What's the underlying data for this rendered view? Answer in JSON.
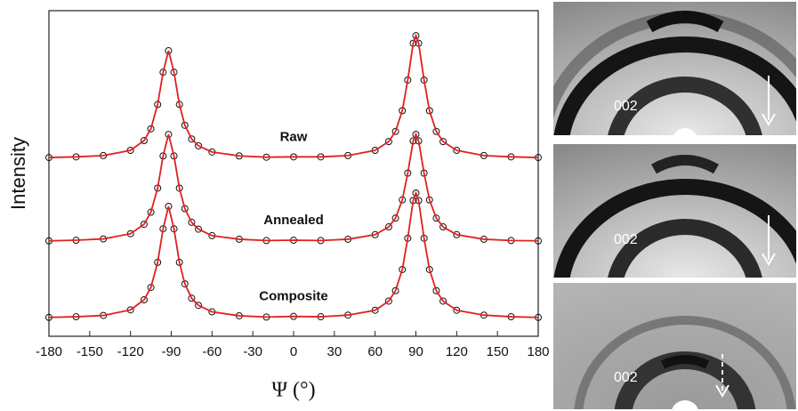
{
  "chart_data": {
    "type": "line",
    "xlabel": "Ψ (°)",
    "ylabel": "Intensity",
    "x": [
      -180,
      -160,
      -140,
      -120,
      -110,
      -105,
      -100,
      -96,
      -92,
      -88,
      -84,
      -80,
      -75,
      -70,
      -60,
      -40,
      -20,
      0,
      20,
      40,
      60,
      70,
      75,
      80,
      84,
      88,
      90,
      92,
      96,
      100,
      105,
      110,
      120,
      140,
      160,
      180
    ],
    "series": [
      {
        "name": "Raw",
        "color": "#e02020",
        "marker_color": "#111111",
        "values": [
          5.49,
          5.51,
          5.55,
          5.71,
          6.01,
          6.37,
          7.12,
          8.11,
          8.77,
          8.11,
          7.12,
          6.48,
          6.06,
          5.85,
          5.66,
          5.54,
          5.5,
          5.51,
          5.51,
          5.55,
          5.71,
          5.98,
          6.29,
          6.93,
          7.87,
          9.0,
          9.23,
          9.0,
          7.87,
          6.93,
          6.29,
          5.98,
          5.71,
          5.55,
          5.51,
          5.49
        ]
      },
      {
        "name": "Annealed",
        "color": "#e02020",
        "marker_color": "#111111",
        "values": [
          2.93,
          2.95,
          2.99,
          3.15,
          3.44,
          3.81,
          4.55,
          5.54,
          6.2,
          5.54,
          4.55,
          3.92,
          3.5,
          3.29,
          3.09,
          2.98,
          2.94,
          2.95,
          2.94,
          2.98,
          3.12,
          3.36,
          3.63,
          4.19,
          5.01,
          6.0,
          6.2,
          6.0,
          5.01,
          4.19,
          3.63,
          3.36,
          3.12,
          2.98,
          2.94,
          2.93
        ]
      },
      {
        "name": "Composite",
        "color": "#e02020",
        "marker_color": "#111111",
        "values": [
          0.58,
          0.6,
          0.64,
          0.81,
          1.12,
          1.5,
          2.27,
          3.3,
          3.99,
          3.3,
          2.27,
          1.61,
          1.17,
          0.95,
          0.75,
          0.63,
          0.59,
          0.61,
          0.6,
          0.65,
          0.8,
          1.08,
          1.4,
          2.05,
          3.01,
          4.17,
          4.4,
          4.17,
          3.01,
          2.05,
          1.4,
          1.08,
          0.8,
          0.65,
          0.6,
          0.58
        ]
      }
    ],
    "xlim": [
      -180,
      180
    ],
    "xticks": [
      -180,
      -150,
      -120,
      -90,
      -60,
      -30,
      0,
      30,
      60,
      90,
      120,
      150,
      180
    ],
    "ylim": [
      0,
      10
    ]
  },
  "images": [
    {
      "label": "002"
    },
    {
      "label": "002"
    },
    {
      "label": "002"
    }
  ]
}
